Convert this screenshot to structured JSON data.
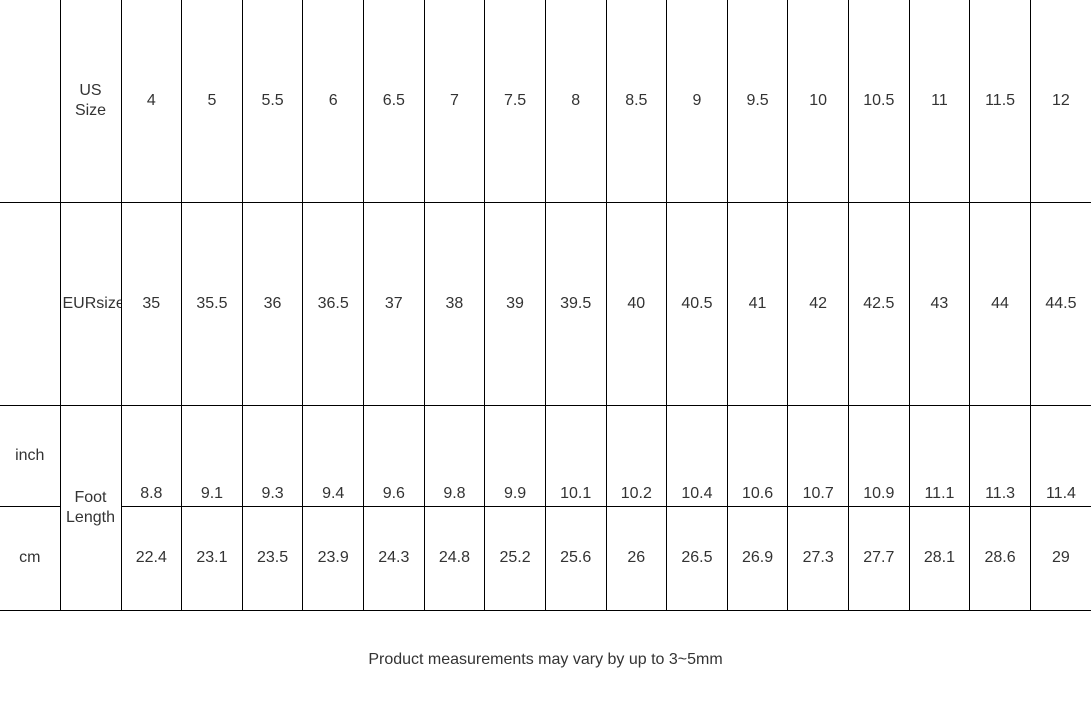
{
  "chart_data": {
    "type": "table",
    "description": "Shoe size conversion table: US size, EUR size and foot length in inches and centimeters",
    "columns_per_row": 16,
    "rows": [
      {
        "key": "us-size",
        "unit_label": "",
        "header": "US Size",
        "values": [
          4,
          5,
          5.5,
          6,
          6.5,
          7,
          7.5,
          8,
          8.5,
          9,
          9.5,
          10,
          10.5,
          11,
          11.5,
          12
        ]
      },
      {
        "key": "eur-size",
        "unit_label": "",
        "header": "EURsize",
        "values": [
          35,
          35.5,
          36,
          36.5,
          37,
          38,
          39,
          39.5,
          40,
          40.5,
          41,
          42,
          42.5,
          43,
          44,
          44.5
        ]
      },
      {
        "key": "foot-length-inch",
        "unit_label": "inch",
        "header": "Foot Length",
        "values": [
          8.8,
          9.1,
          9.3,
          9.4,
          9.6,
          9.8,
          9.9,
          10.1,
          10.2,
          10.4,
          10.6,
          10.7,
          10.9,
          11.1,
          11.3,
          11.4
        ]
      },
      {
        "key": "foot-length-cm",
        "unit_label": "cm",
        "header": "",
        "values": [
          22.4,
          23.1,
          23.5,
          23.9,
          24.3,
          24.8,
          25.2,
          25.6,
          26,
          26.5,
          26.9,
          27.3,
          27.7,
          28.1,
          28.6,
          29
        ]
      }
    ],
    "footnote": "Product measurements may vary by up to 3~5mm"
  }
}
